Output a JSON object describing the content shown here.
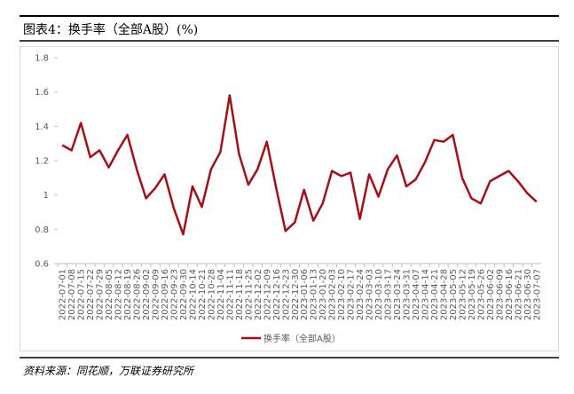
{
  "title": "图表4：换手率（全部A股）(%)",
  "source": "资料来源：同花顺，万联证券研究所",
  "chart_data": {
    "type": "line",
    "x": [
      "2022-07-01",
      "2022-07-08",
      "2022-07-15",
      "2022-07-22",
      "2022-07-29",
      "2022-08-05",
      "2022-08-12",
      "2022-08-19",
      "2022-08-26",
      "2022-09-02",
      "2022-09-09",
      "2022-09-16",
      "2022-09-23",
      "2022-09-30",
      "2022-10-14",
      "2022-10-21",
      "2022-10-28",
      "2022-11-04",
      "2022-11-11",
      "2022-11-18",
      "2022-11-25",
      "2022-12-02",
      "2022-12-09",
      "2022-12-16",
      "2022-12-23",
      "2022-12-30",
      "2023-01-06",
      "2023-01-13",
      "2023-01-20",
      "2023-02-03",
      "2023-02-10",
      "2023-02-17",
      "2023-02-24",
      "2023-03-03",
      "2023-03-10",
      "2023-03-17",
      "2023-03-24",
      "2023-03-31",
      "2023-04-07",
      "2023-04-14",
      "2023-04-21",
      "2023-04-28",
      "2023-05-05",
      "2023-05-12",
      "2023-05-19",
      "2023-05-26",
      "2023-06-02",
      "2023-06-09",
      "2023-06-16",
      "2023-06-21",
      "2023-06-30",
      "2023-07-07"
    ],
    "series": [
      {
        "name": "换手率（全部A股）",
        "color": "#a50f15",
        "values": [
          1.29,
          1.26,
          1.42,
          1.22,
          1.26,
          1.16,
          1.26,
          1.35,
          1.15,
          0.98,
          1.04,
          1.12,
          0.92,
          0.77,
          1.05,
          0.93,
          1.15,
          1.25,
          1.58,
          1.24,
          1.06,
          1.15,
          1.31,
          1.04,
          0.79,
          0.84,
          1.03,
          0.85,
          0.95,
          1.14,
          1.11,
          1.13,
          0.86,
          1.12,
          0.99,
          1.15,
          1.23,
          1.05,
          1.09,
          1.19,
          1.32,
          1.31,
          1.35,
          1.1,
          0.98,
          0.95,
          1.08,
          1.11,
          1.14,
          1.08,
          1.01,
          0.96
        ]
      }
    ],
    "ylim": [
      0.6,
      1.8
    ],
    "yticks": [
      0.6,
      0.8,
      1,
      {
        "value": 1.2,
        "label": "1.2"
      },
      {
        "value": 1.4,
        "label": "1.4"
      },
      {
        "value": 1.6,
        "label": "1.6"
      },
      {
        "value": 1.8,
        "label": "1.8"
      }
    ],
    "grid": false
  }
}
